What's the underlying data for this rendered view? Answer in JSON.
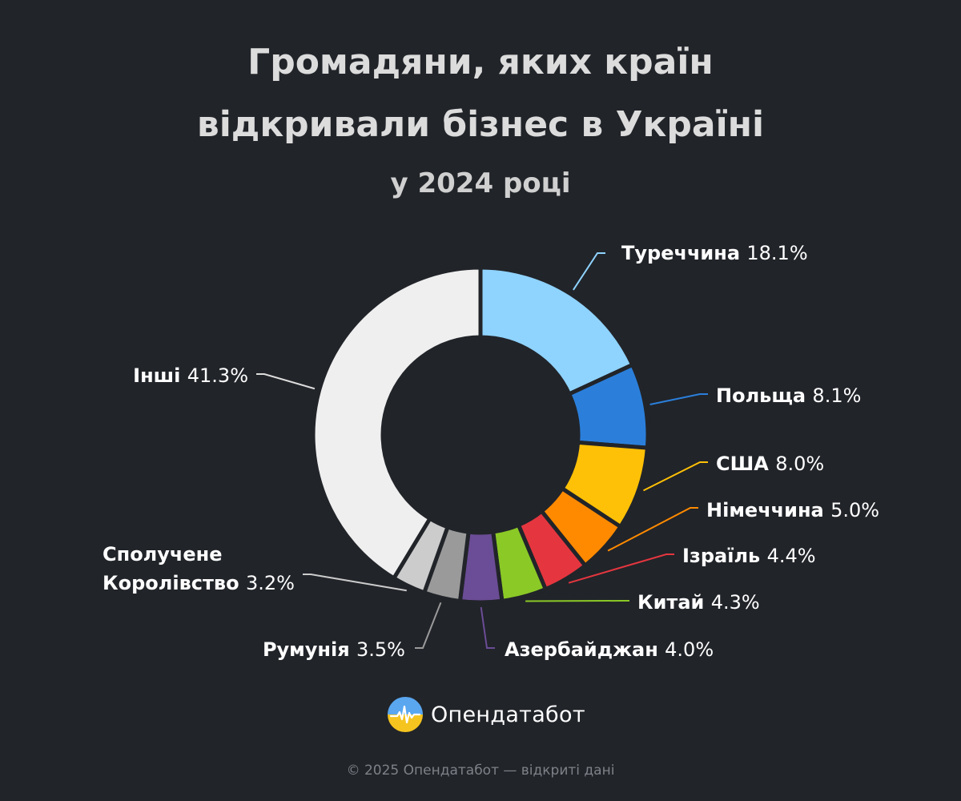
{
  "title": {
    "line1": "Громадяни, яких країн",
    "line2": "відкривали бізнес в Україні",
    "subtitle": "у 2024 році"
  },
  "chart_data": {
    "type": "pie",
    "donut": true,
    "unit": "%",
    "title": "Громадяни, яких країн відкривали бізнес в Україні",
    "subtitle": "у 2024 році",
    "slices": [
      {
        "name": "Туреччина",
        "value": 18.1,
        "label": "18.1%",
        "color": "#8fd3ff"
      },
      {
        "name": "Польща",
        "value": 8.1,
        "label": "8.1%",
        "color": "#2b7fdb"
      },
      {
        "name": "США",
        "value": 8.0,
        "label": "8.0%",
        "color": "#ffc107"
      },
      {
        "name": "Німеччина",
        "value": 5.0,
        "label": "5.0%",
        "color": "#ff8a00"
      },
      {
        "name": "Ізраїль",
        "value": 4.4,
        "label": "4.4%",
        "color": "#e5363f"
      },
      {
        "name": "Китай",
        "value": 4.3,
        "label": "4.3%",
        "color": "#8bc926"
      },
      {
        "name": "Азербайджан",
        "value": 4.0,
        "label": "4.0%",
        "color": "#6b4c96"
      },
      {
        "name": "Румунія",
        "value": 3.5,
        "label": "3.5%",
        "color": "#9a9a9a"
      },
      {
        "name": "Сполучене Королівство",
        "value": 3.2,
        "label": "3.2%",
        "color": "#cccccc"
      },
      {
        "name": "Інші",
        "value": 41.3,
        "label": "41.3%",
        "color": "#efefef"
      }
    ]
  },
  "brand": {
    "name": "Опендатабот",
    "logo_icon": "opendatabot-logo-icon"
  },
  "footer": {
    "text": "© 2025 Опендатабот — відкриті дані"
  },
  "colors": {
    "background": "#212429"
  }
}
